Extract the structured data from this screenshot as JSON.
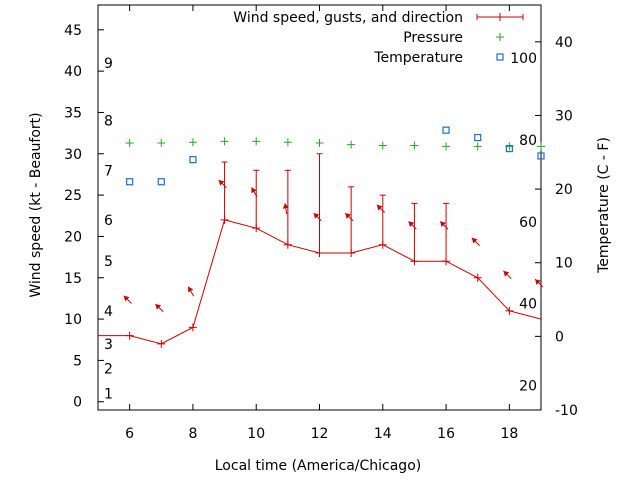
{
  "chart_data": {
    "type": "line",
    "xlabel": "Local time (America/Chicago)",
    "ylabel_left": "Wind speed (kt - Beaufort)",
    "ylabel_right": "Temperature (C - F)",
    "xlim": [
      5,
      19
    ],
    "ylim_left": [
      -1,
      48
    ],
    "ylim_right": [
      -10,
      45
    ],
    "x_ticks": [
      6,
      8,
      10,
      12,
      14,
      16,
      18
    ],
    "y_left_ticks": [
      0,
      5,
      10,
      15,
      20,
      25,
      30,
      35,
      40,
      45
    ],
    "y_right_ticks_celsius": [
      -10,
      0,
      10,
      20,
      30,
      40
    ],
    "y_right_ticks_fahrenheit": [
      20,
      40,
      60,
      80,
      100
    ],
    "beaufort_labels": [
      "1",
      "2",
      "3",
      "4",
      "5",
      "6",
      "7",
      "8",
      "9"
    ],
    "beaufort_label_kt": [
      1,
      4,
      7,
      11,
      17,
      22,
      28,
      34,
      41
    ],
    "legend": [
      "Wind speed, gusts, and direction",
      "Pressure",
      "Temperature"
    ],
    "legend_position": "top-right",
    "series": [
      {
        "name": "Wind speed, gusts, and direction",
        "x": [
          5,
          6,
          7,
          8,
          9,
          10,
          11,
          12,
          13,
          14,
          15,
          16,
          17,
          18,
          19
        ],
        "values": [
          8,
          8,
          7,
          9,
          22,
          21,
          19,
          18,
          18,
          19,
          17,
          17,
          15,
          11,
          10
        ],
        "gusts": [
          null,
          null,
          null,
          null,
          29,
          28,
          28,
          30,
          26,
          25,
          24,
          24,
          null,
          null,
          null
        ],
        "direction_deg": [
          null,
          135,
          135,
          150,
          135,
          150,
          170,
          135,
          135,
          135,
          135,
          135,
          135,
          135,
          135
        ]
      },
      {
        "name": "Pressure",
        "x": [
          6,
          7,
          8,
          9,
          10,
          11,
          12,
          13,
          14,
          15,
          16,
          17,
          18,
          19
        ],
        "values": [
          31.3,
          31.3,
          31.4,
          31.5,
          31.5,
          31.4,
          31.3,
          31.1,
          31.0,
          31.0,
          30.9,
          30.9,
          30.9,
          30.9
        ]
      },
      {
        "name": "Temperature",
        "x": [
          6,
          7,
          8,
          9,
          16,
          17,
          18,
          19
        ],
        "values_celsius": [
          21,
          21,
          24,
          null,
          28,
          27,
          25.5,
          24.5
        ]
      }
    ]
  }
}
